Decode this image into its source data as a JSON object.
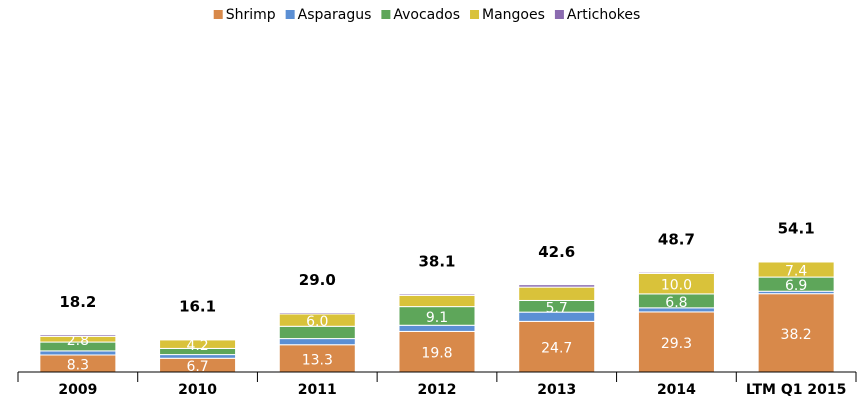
{
  "chart_data": {
    "type": "stacked_bar",
    "categories": [
      "2009",
      "2010",
      "2011",
      "2012",
      "2013",
      "2014",
      "LTM Q1 2015"
    ],
    "series": [
      {
        "name": "Shrimp",
        "color": "#d8894a",
        "values": [
          8.3,
          6.7,
          13.3,
          19.8,
          24.7,
          29.3,
          38.2
        ],
        "value_labels": [
          "8.3",
          "6.7",
          "13.3",
          "19.8",
          "24.7",
          "29.3",
          "38.2"
        ]
      },
      {
        "name": "Asparagus",
        "color": "#5b8fd4",
        "values": [
          2.0,
          1.8,
          3.0,
          3.0,
          4.5,
          2.0,
          1.2
        ]
      },
      {
        "name": "Avocados",
        "color": "#5ea65a",
        "values": [
          4.3,
          3.0,
          6.0,
          9.1,
          5.7,
          6.8,
          6.9
        ],
        "value_labels": [
          null,
          null,
          null,
          "9.1",
          "5.7",
          "6.8",
          "6.9"
        ]
      },
      {
        "name": "Mangoes",
        "color": "#d9c23a",
        "values": [
          2.8,
          4.2,
          6.0,
          5.5,
          6.5,
          10.0,
          7.4
        ],
        "value_labels": [
          "2.8",
          "4.2",
          "6.0",
          null,
          null,
          "10.0",
          "7.4"
        ]
      },
      {
        "name": "Artichokes",
        "color": "#8b6bb0",
        "values": [
          0.8,
          0.4,
          0.7,
          0.7,
          1.2,
          0.6,
          0.4
        ]
      }
    ],
    "totals": [
      18.2,
      16.1,
      29.0,
      38.1,
      42.6,
      48.7,
      54.1
    ],
    "totals_labels": [
      "18.2",
      "16.1",
      "29.0",
      "38.1",
      "42.6",
      "48.7",
      "54.1"
    ],
    "ylim": [
      0,
      140
    ],
    "legend": "top"
  }
}
